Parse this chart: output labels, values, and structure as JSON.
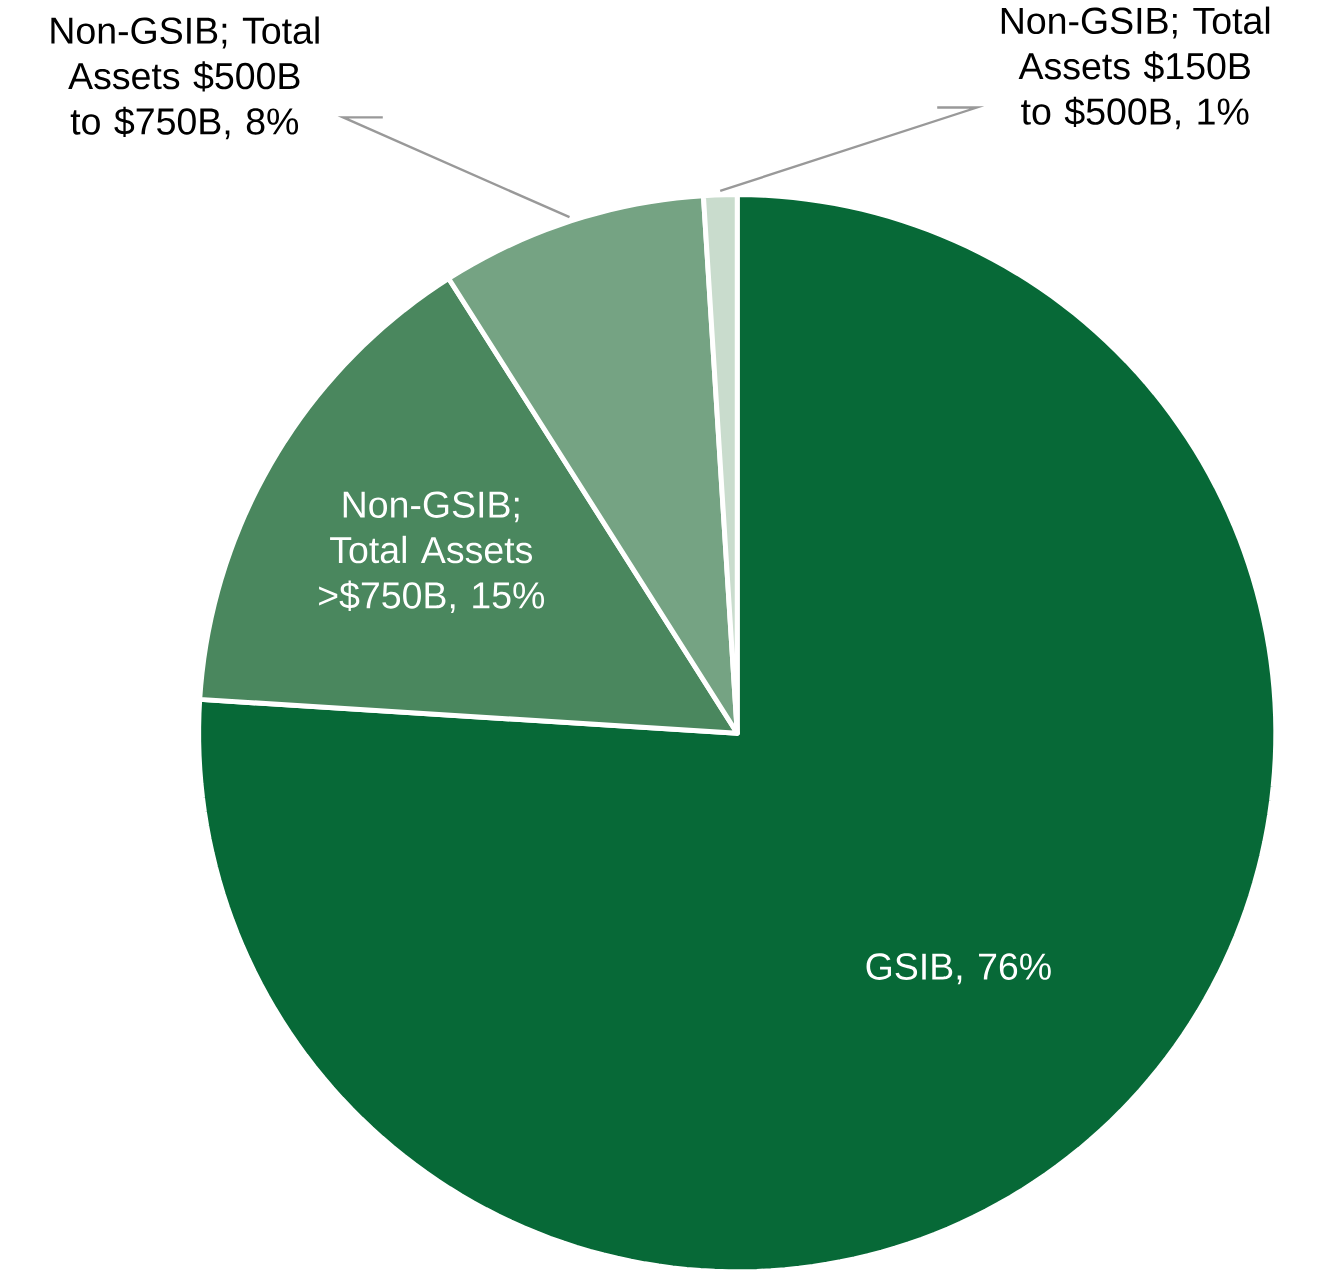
{
  "chart_data": {
    "type": "pie",
    "categories": [
      "GSIB",
      "Non-GSIB; Total Assets >$750B",
      "Non-GSIB; Total Assets $500B to $750B",
      "Non-GSIB; Total Assets $150B to $500B"
    ],
    "values": [
      76,
      15,
      8,
      1
    ],
    "value_labels": [
      ", 76%",
      ", 15%",
      ", 8%",
      ", 1%"
    ],
    "colors": [
      "#076937",
      "#4a875e",
      "#75a383",
      "#c9dccd"
    ]
  }
}
